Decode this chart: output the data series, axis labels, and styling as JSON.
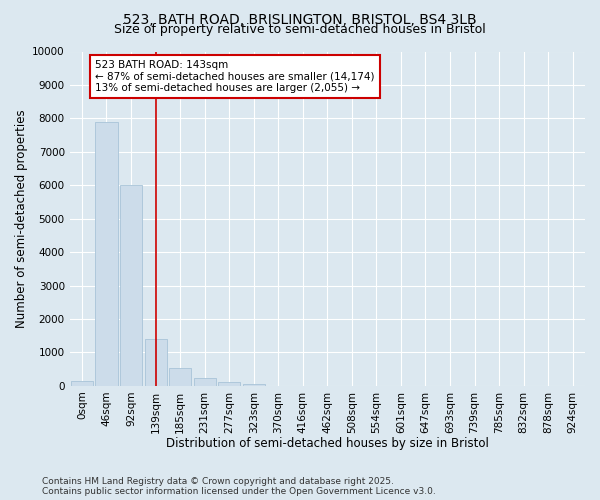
{
  "title_line1": "523, BATH ROAD, BRISLINGTON, BRISTOL, BS4 3LB",
  "title_line2": "Size of property relative to semi-detached houses in Bristol",
  "xlabel": "Distribution of semi-detached houses by size in Bristol",
  "ylabel": "Number of semi-detached properties",
  "bin_labels": [
    "0sqm",
    "46sqm",
    "92sqm",
    "139sqm",
    "185sqm",
    "231sqm",
    "277sqm",
    "323sqm",
    "370sqm",
    "416sqm",
    "462sqm",
    "508sqm",
    "554sqm",
    "601sqm",
    "647sqm",
    "693sqm",
    "739sqm",
    "785sqm",
    "832sqm",
    "878sqm",
    "924sqm"
  ],
  "bar_values": [
    150,
    7900,
    6000,
    1400,
    520,
    230,
    130,
    70,
    10,
    0,
    0,
    0,
    0,
    0,
    0,
    0,
    0,
    0,
    0,
    0,
    0
  ],
  "bar_color": "#ccdcea",
  "bar_edgecolor": "#a8c4d8",
  "vline_x": 3.0,
  "vline_color": "#cc0000",
  "annotation_line1": "523 BATH ROAD: 143sqm",
  "annotation_line2": "← 87% of semi-detached houses are smaller (14,174)",
  "annotation_line3": "13% of semi-detached houses are larger (2,055) →",
  "annotation_box_color": "#cc0000",
  "annotation_bg": "#ffffff",
  "ylim": [
    0,
    10000
  ],
  "yticks": [
    0,
    1000,
    2000,
    3000,
    4000,
    5000,
    6000,
    7000,
    8000,
    9000,
    10000
  ],
  "bg_color": "#dce8f0",
  "footer_text": "Contains HM Land Registry data © Crown copyright and database right 2025.\nContains public sector information licensed under the Open Government Licence v3.0.",
  "title_fontsize": 10,
  "subtitle_fontsize": 9,
  "axis_label_fontsize": 8.5,
  "tick_fontsize": 7.5,
  "annotation_fontsize": 7.5,
  "footer_fontsize": 6.5
}
